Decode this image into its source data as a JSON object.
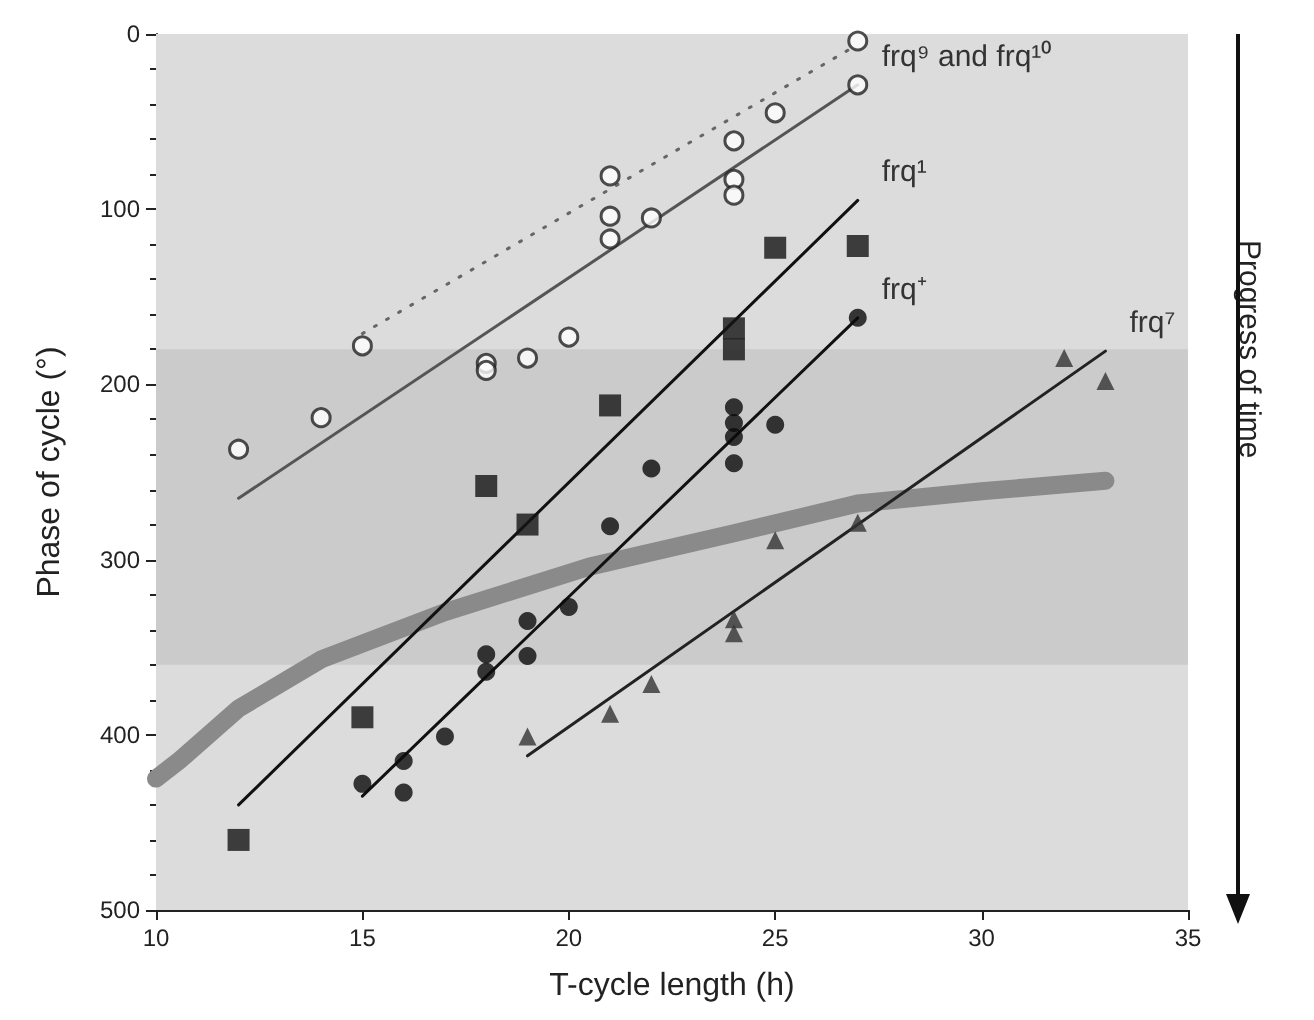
{
  "chart_data": {
    "type": "scatter",
    "xlabel": "T-cycle length (h)",
    "ylabel": "Phase of cycle (°)",
    "xlim": [
      10,
      35
    ],
    "xticks": [
      10,
      15,
      20,
      25,
      30,
      35
    ],
    "ylim": [
      500,
      0
    ],
    "yticks": [
      0,
      100,
      200,
      300,
      400,
      500
    ],
    "grid": false,
    "legend": false,
    "bands": [
      {
        "axis": "y",
        "from": 0,
        "to": 500,
        "color": "#dcdcdc"
      },
      {
        "axis": "y",
        "from": 180,
        "to": 360,
        "color": "#cbcbcb"
      }
    ],
    "series": [
      {
        "type": "line",
        "color": "#8a8a8a",
        "marker": "none",
        "line_style": "solid",
        "x": [
          10,
          10.6,
          12,
          14,
          17,
          20.5,
          24,
          27,
          30,
          33
        ],
        "values": [
          425,
          414,
          385,
          357,
          330,
          304,
          285,
          268,
          261,
          255
        ]
      },
      {
        "type": "line",
        "name": "frq⁹ and frq¹⁰",
        "color": "#555555",
        "marker": "none",
        "line_style": "solid",
        "x": [
          12,
          27
        ],
        "values": [
          265,
          29
        ]
      },
      {
        "type": "line",
        "color": "#666666",
        "marker": "none",
        "line_style": "dotted",
        "x": [
          15,
          27
        ],
        "values": [
          171,
          6
        ]
      },
      {
        "type": "line",
        "name": "frq¹",
        "color": "#111111",
        "marker": "none",
        "line_style": "solid",
        "x": [
          12,
          27
        ],
        "values": [
          440,
          95
        ]
      },
      {
        "type": "line",
        "name": "frq⁺",
        "color": "#111111",
        "marker": "none",
        "line_style": "solid",
        "x": [
          15,
          27
        ],
        "values": [
          435,
          162
        ]
      },
      {
        "type": "line",
        "name": "frq⁷",
        "color": "#222222",
        "marker": "none",
        "line_style": "solid",
        "x": [
          19,
          33
        ],
        "values": [
          412,
          181
        ]
      },
      {
        "color": "#ffffff",
        "marker": "circle",
        "x": [
          12,
          14,
          15,
          18,
          18,
          19,
          20,
          21,
          21,
          21,
          22,
          24,
          24,
          24,
          25,
          27,
          27
        ],
        "values": [
          237,
          219,
          178,
          188,
          192,
          185,
          173,
          81,
          104,
          117,
          105,
          61,
          83,
          92,
          45,
          4,
          29
        ]
      },
      {
        "color": "#141414",
        "marker": "square",
        "x": [
          12,
          15,
          18,
          19,
          21,
          24,
          24,
          25,
          27
        ],
        "values": [
          460,
          390,
          258,
          280,
          212,
          168,
          180,
          122,
          121
        ]
      },
      {
        "color": "#0a0a0a",
        "marker": "circle",
        "x": [
          15,
          16,
          16,
          17,
          18,
          18,
          19,
          19,
          20,
          21,
          22,
          24,
          24,
          24,
          24,
          25,
          27
        ],
        "values": [
          428,
          415,
          433,
          401,
          354,
          364,
          335,
          355,
          327,
          281,
          248,
          213,
          222,
          230,
          245,
          223,
          162
        ]
      },
      {
        "color": "#333333",
        "marker": "triangle",
        "x": [
          19,
          21,
          22,
          24,
          24,
          25,
          27,
          32,
          33
        ],
        "values": [
          401,
          388,
          371,
          334,
          342,
          289,
          279,
          185,
          198
        ]
      }
    ],
    "annotations": [
      "Progress of time"
    ]
  }
}
